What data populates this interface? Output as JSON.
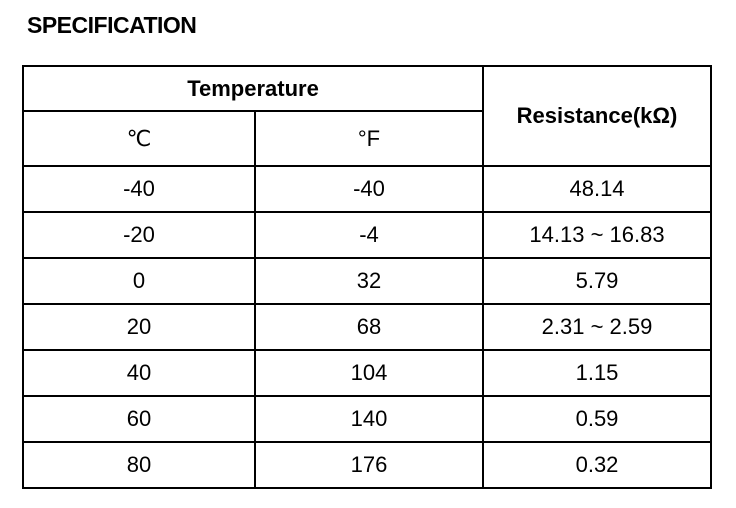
{
  "title": "SPECIFICATION",
  "table": {
    "header": {
      "group": "Temperature",
      "celsius": "℃",
      "fahrenheit": "°F",
      "resistance": "Resistance(kΩ)"
    },
    "rows": [
      [
        "-40",
        "-40",
        "48.14"
      ],
      [
        "-20",
        "-4",
        "14.13 ~ 16.83"
      ],
      [
        "0",
        "32",
        "5.79"
      ],
      [
        "20",
        "68",
        "2.31 ~ 2.59"
      ],
      [
        "40",
        "104",
        "1.15"
      ],
      [
        "60",
        "140",
        "0.59"
      ],
      [
        "80",
        "176",
        "0.32"
      ]
    ]
  }
}
